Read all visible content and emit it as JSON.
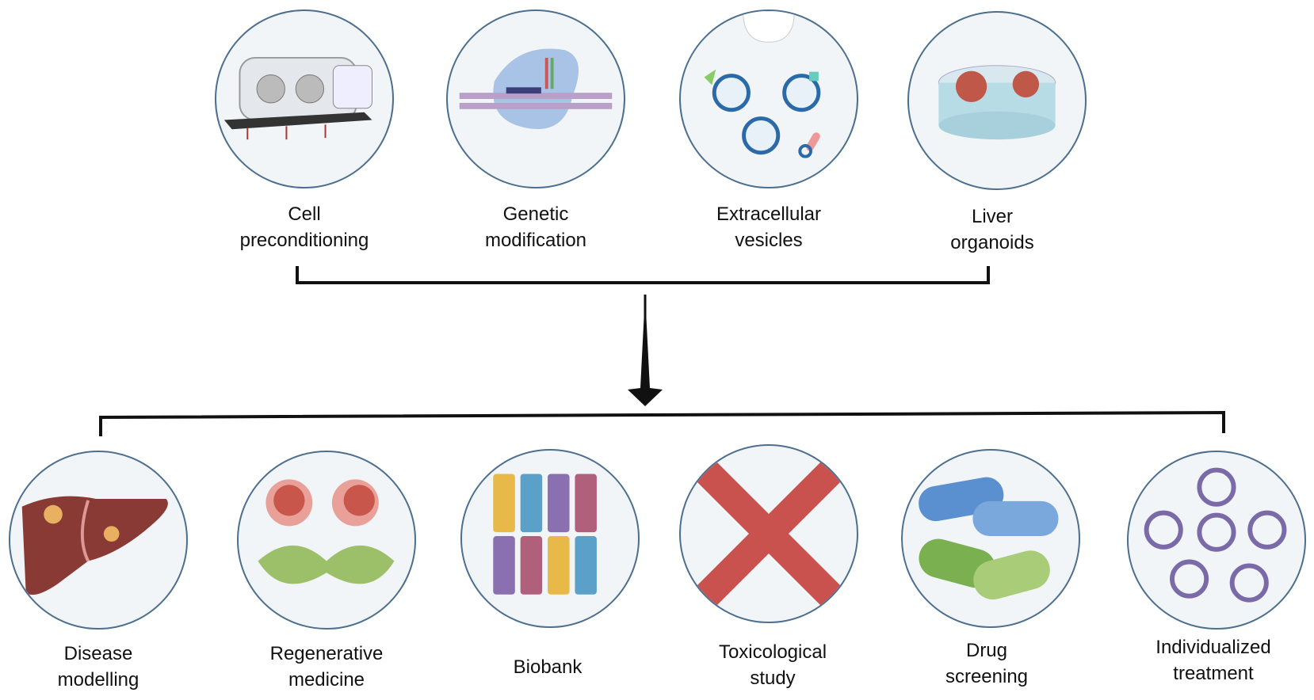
{
  "sources": [
    {
      "line1": "Cell",
      "line2": "preconditioning",
      "icon": "glovebox-icon"
    },
    {
      "line1": "Genetic",
      "line2": "modification",
      "icon": "dna-editing-icon"
    },
    {
      "line1": "Extracellular",
      "line2": "vesicles",
      "icon": "vesicles-icon"
    },
    {
      "line1": "Liver",
      "line2": "organoids",
      "icon": "petri-dish-organoids-icon"
    }
  ],
  "applications": [
    {
      "line1": "Disease",
      "line2": "modelling",
      "icon": "liver-icon"
    },
    {
      "line1": "Regenerative",
      "line2": "medicine",
      "icon": "cells-mitochondria-icon"
    },
    {
      "line1": "Biobank",
      "line2": "",
      "icon": "sample-tubes-icon"
    },
    {
      "line1": "Toxicological",
      "line2": "study",
      "icon": "red-cross-icon"
    },
    {
      "line1": "Drug",
      "line2": "screening",
      "icon": "capsules-icon"
    },
    {
      "line1": "Individualized",
      "line2": "treatment",
      "icon": "cycle-rings-icon"
    }
  ],
  "colors": {
    "circle_border": "#4d6f8f",
    "circle_fill": "#f1f5f8",
    "connector": "#111111",
    "cross": "#c9524f"
  }
}
